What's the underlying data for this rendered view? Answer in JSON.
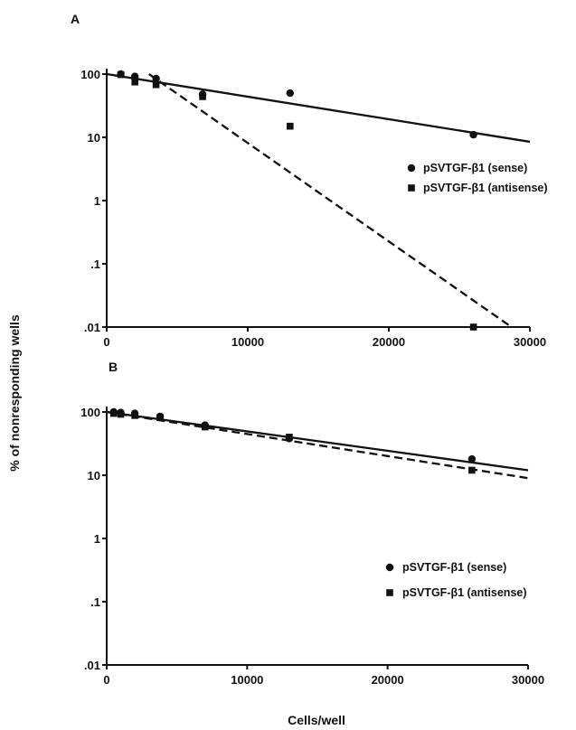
{
  "chart_data": [
    {
      "type": "scatter",
      "panel_label": "A",
      "xlabel": "",
      "ylabel": "% of nonresponding wells",
      "xlim": [
        0,
        30000
      ],
      "ylim": [
        0.01,
        100
      ],
      "y_scale": "log",
      "x_ticks": [
        "0",
        "10000",
        "20000",
        "30000"
      ],
      "y_ticks": [
        "100",
        "10",
        "1",
        ".1",
        ".01"
      ],
      "legend_position": "right",
      "series": [
        {
          "name": "pSVTGF-β1 (sense)",
          "marker": "circle",
          "fit_line": "solid",
          "points": [
            [
              1000,
              100
            ],
            [
              2000,
              92
            ],
            [
              3500,
              85
            ],
            [
              6800,
              48
            ],
            [
              13000,
              50
            ],
            [
              26000,
              11
            ]
          ],
          "fit": [
            [
              0,
              100
            ],
            [
              30000,
              8.5
            ]
          ]
        },
        {
          "name": "pSVTGF-β1 (antisense)",
          "marker": "square",
          "fit_line": "dashed",
          "points": [
            [
              1000,
              98
            ],
            [
              2000,
              75
            ],
            [
              3500,
              68
            ],
            [
              6800,
              44
            ],
            [
              13000,
              15
            ],
            [
              26000,
              0.01
            ]
          ],
          "fit": [
            [
              3000,
              100
            ],
            [
              28700,
              0.01
            ]
          ]
        }
      ]
    },
    {
      "type": "scatter",
      "panel_label": "B",
      "xlabel": "Cells/well",
      "ylabel": "% of nonresponding wells",
      "xlim": [
        0,
        30000
      ],
      "ylim": [
        0.01,
        100
      ],
      "y_scale": "log",
      "x_ticks": [
        "0",
        "10000",
        "20000",
        "30000"
      ],
      "y_ticks": [
        "100",
        "10",
        "1",
        ".1",
        ".01"
      ],
      "legend_position": "bottom-right",
      "series": [
        {
          "name": "pSVTGF-β1 (sense)",
          "marker": "circle",
          "fit_line": "solid",
          "points": [
            [
              500,
              100
            ],
            [
              1000,
              98
            ],
            [
              2000,
              95
            ],
            [
              3800,
              85
            ],
            [
              7000,
              62
            ],
            [
              13000,
              38
            ],
            [
              26000,
              18
            ]
          ],
          "fit": [
            [
              0,
              100
            ],
            [
              30000,
              12
            ]
          ]
        },
        {
          "name": "pSVTGF-β1 (antisense)",
          "marker": "square",
          "fit_line": "dashed",
          "points": [
            [
              500,
              95
            ],
            [
              1000,
              92
            ],
            [
              2000,
              88
            ],
            [
              3800,
              82
            ],
            [
              7000,
              58
            ],
            [
              13000,
              40
            ],
            [
              26000,
              12
            ]
          ],
          "fit": [
            [
              0,
              100
            ],
            [
              30000,
              9
            ]
          ]
        }
      ]
    }
  ]
}
